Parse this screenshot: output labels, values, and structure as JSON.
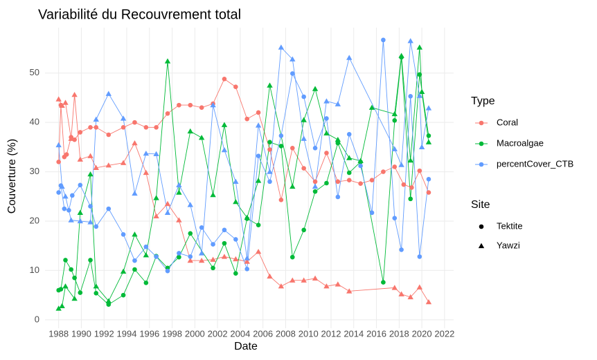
{
  "chart_data": {
    "type": "line",
    "title": "Variabilité du Recouvrement total",
    "x_label": "Date",
    "y_label": "Couverture (%)",
    "xlim": [
      1986.8,
      2022.8
    ],
    "ylim": [
      -1.7,
      59.2
    ],
    "xticks": [
      1988,
      1990,
      1992,
      1994,
      1996,
      1998,
      2000,
      2002,
      2004,
      2006,
      2008,
      2010,
      2012,
      2014,
      2016,
      2018,
      2020,
      2022
    ],
    "yticks": [
      0,
      10,
      20,
      30,
      40,
      50
    ],
    "grid": true,
    "color_legend": {
      "title": "Type",
      "items": [
        {
          "name": "Coral",
          "color": "#f8766d"
        },
        {
          "name": "Macroalgae",
          "color": "#00ba38"
        },
        {
          "name": "percentCover_CTB",
          "color": "#619cff"
        }
      ]
    },
    "shape_legend": {
      "title": "Site",
      "items": [
        {
          "name": "Tektite",
          "shape": "circle"
        },
        {
          "name": "Yawzi",
          "shape": "triangle"
        }
      ]
    },
    "series": [
      {
        "group": "Coral",
        "site": "Tektite",
        "x": [
          1988.0,
          1988.2,
          1988.5,
          1988.7,
          1989.1,
          1989.4,
          1989.9,
          1990.8,
          1991.3,
          1992.4,
          1993.7,
          1994.7,
          1995.7,
          1996.6,
          1997.6,
          1998.6,
          1999.6,
          2000.6,
          2001.6,
          2002.6,
          2003.6,
          2004.6,
          2005.6,
          2006.6,
          2007.6,
          2008.6,
          2009.6,
          2010.6,
          2011.6,
          2012.6,
          2013.6,
          2014.6,
          2015.6,
          2016.6,
          2017.6,
          2018.4,
          2019.1,
          2019.8,
          2020.6
        ],
        "values": [
          32,
          43.5,
          33,
          33.5,
          37,
          36.5,
          38,
          39,
          39,
          37.5,
          39,
          40,
          39,
          39,
          41.8,
          43.5,
          43.5,
          43,
          43.8,
          48.8,
          47.2,
          40.7,
          42,
          34.5,
          24.3,
          34.8,
          30.7,
          28,
          33.8,
          28,
          28.3,
          27.6,
          28.3,
          30,
          31,
          27.4,
          26.8,
          30.2,
          25.8
        ]
      },
      {
        "group": "Coral",
        "site": "Yawzi",
        "x": [
          1988.0,
          1988.3,
          1988.6,
          1989.1,
          1989.4,
          1989.9,
          1990.8,
          1991.3,
          1992.4,
          1993.7,
          1994.7,
          1995.7,
          1996.6,
          1997.6,
          1998.6,
          1999.6,
          2000.6,
          2001.6,
          2002.6,
          2003.6,
          2004.6,
          2005.6,
          2006.6,
          2007.6,
          2008.6,
          2009.6,
          2010.6,
          2011.6,
          2012.6,
          2013.6,
          2017.6,
          2018.2,
          2019.0,
          2019.8,
          2020.6
        ],
        "values": [
          44.7,
          43.4,
          44,
          36.7,
          45.6,
          32.5,
          33.2,
          30.8,
          31.3,
          31.8,
          35.8,
          29.8,
          21,
          23.5,
          20.2,
          12,
          12,
          12.2,
          12.8,
          12.3,
          11.8,
          13.8,
          8.8,
          6.8,
          8,
          8,
          8.4,
          6.8,
          7.2,
          5.8,
          6.5,
          5.2,
          4.6,
          6.6,
          3.6
        ]
      },
      {
        "group": "Macroalgae",
        "site": "Tektite",
        "x": [
          1988.0,
          1988.2,
          1988.6,
          1989.1,
          1989.4,
          1989.9,
          1990.8,
          1991.3,
          1992.4,
          1993.7,
          1994.7,
          1995.7,
          1996.6,
          1997.6,
          1998.6,
          1999.6,
          2001.6,
          2002.6,
          2003.6,
          2004.6,
          2005.6,
          2006.6,
          2007.6,
          2008.6,
          2009.6,
          2010.6,
          2011.6,
          2012.6,
          2013.6,
          2014.6,
          2016.6,
          2017.6,
          2018.2,
          2019.0,
          2019.8,
          2020.6
        ],
        "values": [
          6,
          6.2,
          12.1,
          10.2,
          8.5,
          5.5,
          12.1,
          5.4,
          3.1,
          5,
          10.2,
          7.5,
          12.9,
          10.5,
          12.7,
          17.5,
          10.5,
          15.5,
          9.4,
          20.5,
          19.2,
          36,
          35.2,
          12.7,
          18.2,
          26,
          27.7,
          35.8,
          29.8,
          32,
          7.6,
          40.4,
          53.2,
          24.5,
          49.7,
          37.3
        ]
      },
      {
        "group": "Macroalgae",
        "site": "Yawzi",
        "x": [
          1988.0,
          1988.3,
          1988.6,
          1989.4,
          1989.9,
          1990.8,
          1991.3,
          1992.4,
          1993.7,
          1994.7,
          1995.7,
          1996.6,
          1997.6,
          1998.6,
          1999.6,
          2000.6,
          2001.6,
          2002.6,
          2003.6,
          2004.6,
          2005.6,
          2006.6,
          2008.6,
          2009.6,
          2010.6,
          2011.6,
          2012.6,
          2013.6,
          2014.6,
          2015.6,
          2017.6,
          2018.2,
          2019.0,
          2019.8,
          2020.0,
          2020.6
        ],
        "values": [
          2.3,
          2.8,
          6.8,
          4.3,
          21.7,
          29.5,
          6.8,
          3.8,
          9.8,
          17.3,
          13.1,
          24.7,
          52.4,
          25.8,
          38.2,
          36.9,
          25.3,
          39.5,
          23.9,
          20.7,
          28.2,
          47.5,
          27,
          40.5,
          46.8,
          37.8,
          36.5,
          32.8,
          32.2,
          43,
          41.7,
          53.5,
          32.3,
          55.2,
          46.2,
          36
        ]
      },
      {
        "group": "percentCover_CTB",
        "site": "Tektite",
        "x": [
          1988.0,
          1988.2,
          1988.5,
          1988.9,
          1989.2,
          1989.9,
          1990.8,
          1991.3,
          1992.4,
          1993.7,
          1994.7,
          1995.7,
          1996.6,
          1997.6,
          1998.6,
          1999.6,
          2000.6,
          2001.6,
          2002.6,
          2003.6,
          2004.6,
          2005.6,
          2006.6,
          2007.6,
          2008.6,
          2009.6,
          2010.6,
          2011.6,
          2012.6,
          2013.6,
          2014.6,
          2015.6,
          2016.6,
          2017.6,
          2018.2,
          2019.0,
          2019.8,
          2020.6
        ],
        "values": [
          25.8,
          27.2,
          22.5,
          22.2,
          25.2,
          27.3,
          23,
          18.9,
          22.5,
          17.3,
          12,
          14.8,
          12.8,
          9.9,
          13.5,
          12.8,
          18.7,
          15.3,
          18.2,
          16.3,
          10.3,
          33.2,
          28,
          37.3,
          49.9,
          45.2,
          34.8,
          40.8,
          24.9,
          37.6,
          31.2,
          21.7,
          56.7,
          20.6,
          14.2,
          45.3,
          12.8,
          28.5
        ]
      },
      {
        "group": "percentCover_CTB",
        "site": "Yawzi",
        "x": [
          1988.0,
          1988.3,
          1988.6,
          1989.1,
          1989.9,
          1990.8,
          1991.3,
          1992.4,
          1993.7,
          1994.7,
          1995.7,
          1996.6,
          1997.6,
          1998.6,
          1999.6,
          2000.6,
          2001.6,
          2002.6,
          2003.6,
          2004.6,
          2005.6,
          2006.6,
          2007.6,
          2008.6,
          2009.6,
          2010.6,
          2011.6,
          2012.6,
          2013.6,
          2017.6,
          2018.2,
          2019.0,
          2019.8,
          2020.0,
          2020.6
        ],
        "values": [
          35.4,
          27,
          25,
          20.2,
          20,
          19.8,
          40.6,
          45.8,
          40.8,
          25.6,
          33.7,
          33.6,
          21.7,
          27.3,
          23.3,
          13.5,
          43.5,
          34.4,
          28,
          12.5,
          39.4,
          30,
          55.2,
          52.8,
          36.7,
          27,
          44.3,
          43.7,
          53.1,
          34.6,
          31.4,
          56.5,
          45.4,
          35,
          42.9
        ]
      }
    ]
  }
}
